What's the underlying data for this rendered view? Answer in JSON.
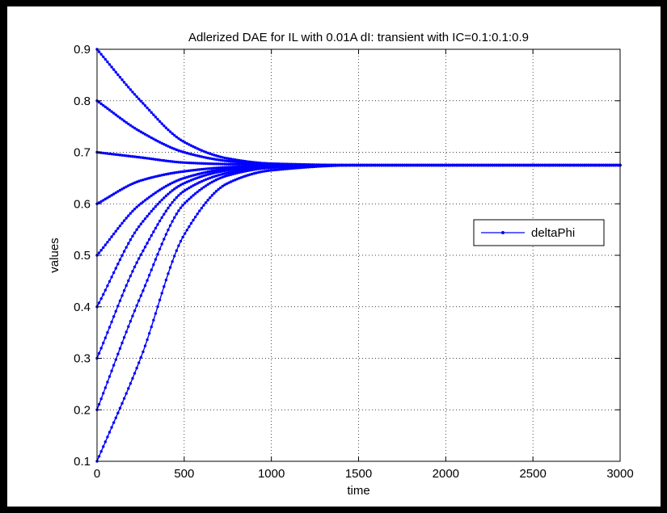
{
  "chart_data": {
    "type": "line",
    "title": "Adlerized DAE for IL with 0.01A dI: transient with IC=0.1:0.1:0.9",
    "xlabel": "time",
    "ylabel": "values",
    "xlim": [
      0,
      3000
    ],
    "ylim": [
      0.1,
      0.9
    ],
    "xticks": [
      0,
      500,
      1000,
      1500,
      2000,
      2500,
      3000
    ],
    "xtick_labels": [
      "0",
      "500",
      "1000",
      "1500",
      "2000",
      "2500",
      "3000"
    ],
    "yticks": [
      0.1,
      0.2,
      0.3,
      0.4,
      0.5,
      0.6,
      0.7,
      0.8,
      0.9
    ],
    "ytick_labels": [
      "0.1",
      "0.2",
      "0.3",
      "0.4",
      "0.5",
      "0.6",
      "0.7",
      "0.8",
      "0.9"
    ],
    "grid": true,
    "grid_style": "dotted",
    "legend": {
      "entries": [
        "deltaPhi"
      ],
      "placement": "right"
    },
    "series_color": "#0000ff",
    "marker": "dot",
    "steady_state": 0.675,
    "initial_conditions": [
      0.1,
      0.2,
      0.3,
      0.4,
      0.5,
      0.6,
      0.7,
      0.8,
      0.9
    ],
    "x": [
      0,
      250,
      500,
      750,
      1000,
      1500,
      2000,
      3000
    ],
    "series": [
      {
        "values": [
          0.1,
          0.3,
          0.54,
          0.64,
          0.665,
          0.675,
          0.675,
          0.675
        ]
      },
      {
        "values": [
          0.2,
          0.42,
          0.6,
          0.655,
          0.67,
          0.675,
          0.675,
          0.675
        ]
      },
      {
        "values": [
          0.3,
          0.5,
          0.625,
          0.66,
          0.672,
          0.675,
          0.675,
          0.675
        ]
      },
      {
        "values": [
          0.4,
          0.56,
          0.64,
          0.665,
          0.673,
          0.675,
          0.675,
          0.675
        ]
      },
      {
        "values": [
          0.5,
          0.6,
          0.65,
          0.668,
          0.674,
          0.675,
          0.675,
          0.675
        ]
      },
      {
        "values": [
          0.6,
          0.645,
          0.663,
          0.671,
          0.674,
          0.675,
          0.675,
          0.675
        ]
      },
      {
        "values": [
          0.7,
          0.69,
          0.68,
          0.677,
          0.676,
          0.675,
          0.675,
          0.675
        ]
      },
      {
        "values": [
          0.8,
          0.74,
          0.7,
          0.683,
          0.677,
          0.675,
          0.675,
          0.675
        ]
      },
      {
        "values": [
          0.9,
          0.8,
          0.72,
          0.688,
          0.678,
          0.675,
          0.675,
          0.675
        ]
      }
    ]
  }
}
